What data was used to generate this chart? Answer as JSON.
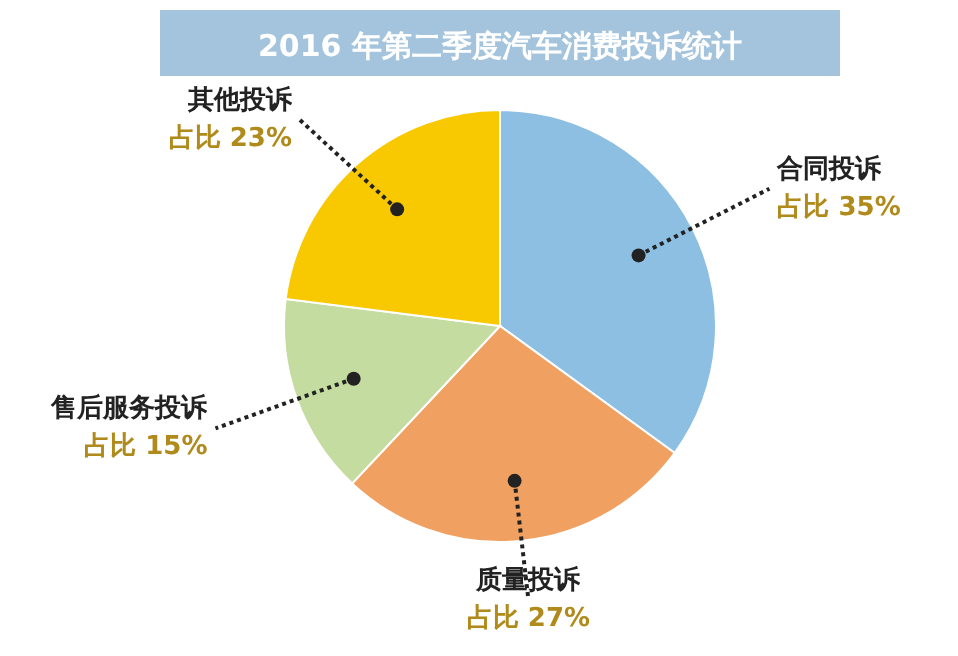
{
  "chart_data": {
    "type": "pie",
    "title": "2016 年第二季度汽车消费投诉统计",
    "categories": [
      "合同投诉",
      "质量投诉",
      "售后服务投诉",
      "其他投诉"
    ],
    "values": [
      35,
      27,
      15,
      23
    ],
    "colors": [
      "#8dbfe3",
      "#f0a060",
      "#c4dca0",
      "#f8c800"
    ],
    "value_labels": [
      "占比 35%",
      "占比 27%",
      "占比 15%",
      "占比 23%"
    ]
  }
}
